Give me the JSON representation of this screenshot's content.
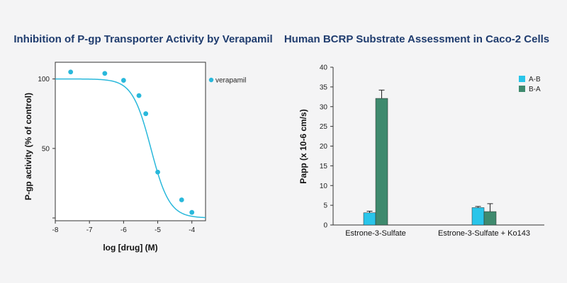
{
  "chart_data": [
    {
      "type": "scatter",
      "title": "Inhibition of P-gp Transporter Activity by Verapamil",
      "xlabel": "log [drug] (M)",
      "ylabel": "P-gp activity (% of control)",
      "xlim": [
        -8,
        -3.6
      ],
      "ylim": [
        -2,
        112
      ],
      "x_ticks": [
        -8,
        -7,
        -6,
        -5,
        -4
      ],
      "y_ticks": [
        50,
        100
      ],
      "y_tick_marks": [
        0,
        50,
        100
      ],
      "legend_position": "top-right",
      "colors": {
        "series": "#29b8db"
      },
      "series": [
        {
          "name": "verapamil",
          "x": [
            -7.55,
            -6.55,
            -6.0,
            -5.55,
            -5.35,
            -5.0,
            -4.3,
            -4.0
          ],
          "y": [
            105,
            104,
            99,
            88,
            75,
            33,
            13,
            4
          ]
        }
      ],
      "fit_curve": {
        "top": 100,
        "bottom": 0,
        "log_ic50": -5.2,
        "hill_slope": 1.6
      }
    },
    {
      "type": "bar",
      "title": "Human BCRP Substrate Assessment in Caco-2 Cells",
      "xlabel": "",
      "ylabel": "Papp (x 10-6 cm/s)",
      "ylim": [
        0,
        40
      ],
      "y_ticks": [
        0,
        5,
        10,
        15,
        20,
        25,
        30,
        35,
        40
      ],
      "categories": [
        "Estrone-3-Sulfate",
        "Estrone-3-Sulfate + Ko143"
      ],
      "legend_position": "top-right",
      "series": [
        {
          "name": "A-B",
          "color": "#29c5ea",
          "values": [
            3.1,
            4.4
          ],
          "errors": [
            0.4,
            0.3
          ]
        },
        {
          "name": "B-A",
          "color": "#3f8a6e",
          "values": [
            32.1,
            3.4
          ],
          "errors": [
            2.1,
            2.0
          ]
        }
      ]
    }
  ]
}
